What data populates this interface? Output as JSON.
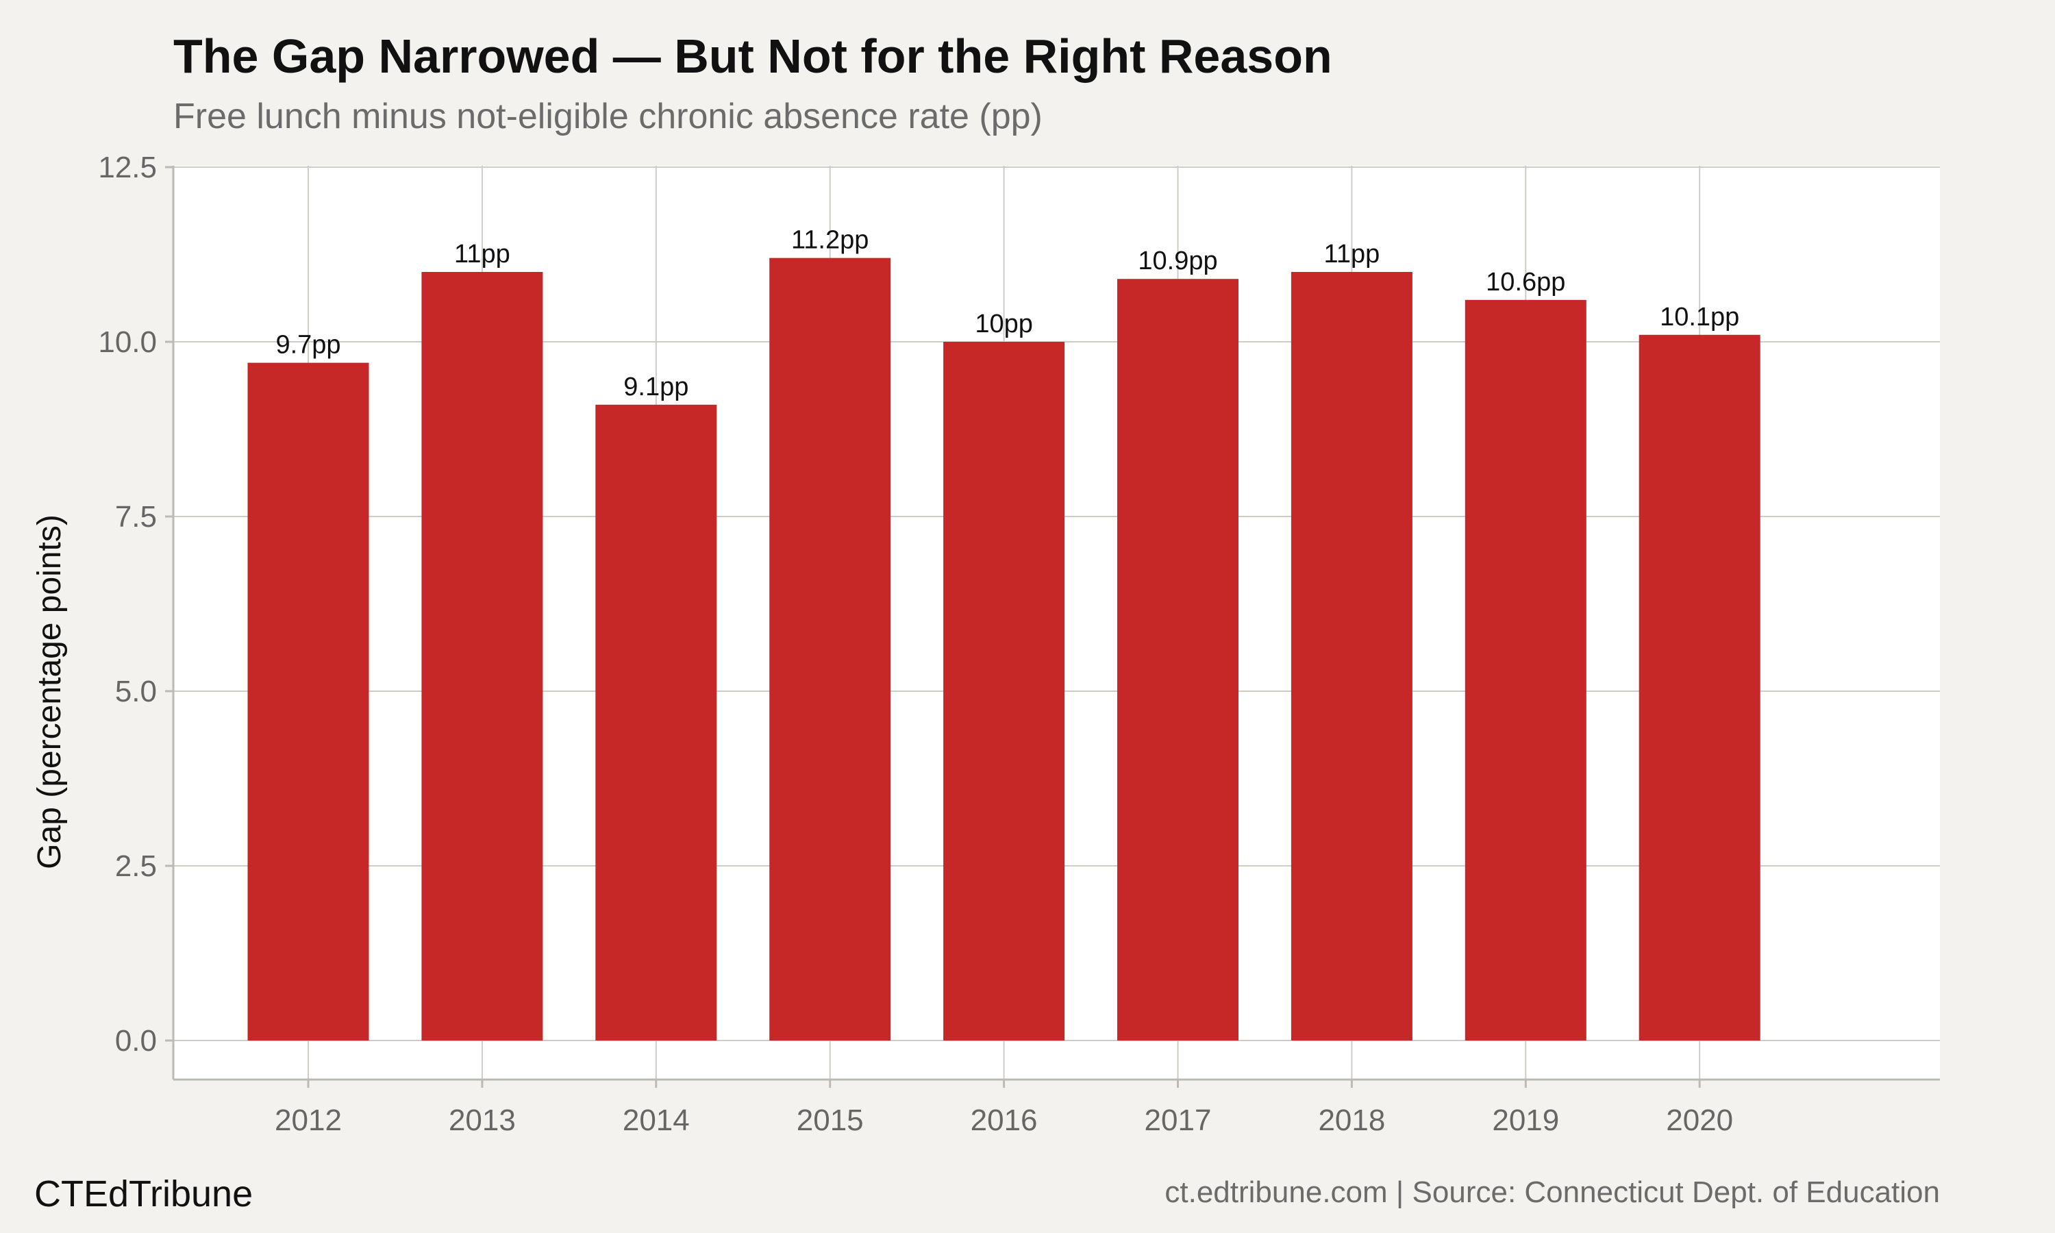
{
  "chart_data": {
    "type": "bar",
    "title": "The Gap Narrowed — But Not for the Right Reason",
    "subtitle": "Free lunch minus not-eligible chronic absence rate (pp)",
    "xlabel": "",
    "ylabel": "Gap (percentage points)",
    "categories": [
      "2012",
      "2013",
      "2014",
      "2015",
      "2016",
      "2017",
      "2018",
      "2019",
      "2020"
    ],
    "values": [
      9.7,
      11,
      9.1,
      11.2,
      10,
      10.9,
      11,
      10.6,
      10.1
    ],
    "data_labels": [
      "9.7pp",
      "11pp",
      "9.1pp",
      "11.2pp",
      "10pp",
      "10.9pp",
      "11pp",
      "10.6pp",
      "10.1pp"
    ],
    "ylim": [
      0,
      12.5
    ],
    "yticks": [
      0,
      2.5,
      5,
      7.5,
      10,
      12.5
    ],
    "ytick_labels": [
      "0.0",
      "2.5",
      "5.0",
      "7.5",
      "10.0",
      "12.5"
    ],
    "grid": true,
    "legend": "none",
    "colors": {
      "bar": "#c62828",
      "background": "#f4f2ee",
      "panel": "#ffffff",
      "grid": "#cfccc6"
    }
  },
  "footer": {
    "brand": "CTEdTribune",
    "source": "ct.edtribune.com | Source: Connecticut Dept. of Education"
  }
}
